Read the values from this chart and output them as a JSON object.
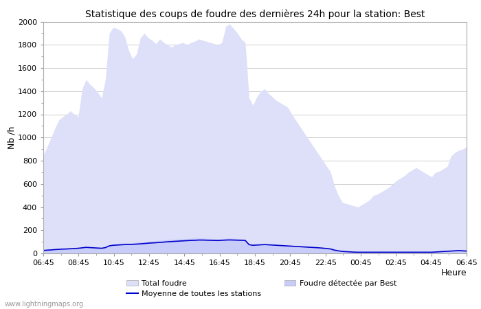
{
  "title": "Statistique des coups de foudre des dernières 24h pour la station: Best",
  "xlabel": "Heure",
  "ylabel": "Nb /h",
  "xtick_labels": [
    "06:45",
    "08:45",
    "10:45",
    "12:45",
    "14:45",
    "16:45",
    "18:45",
    "20:45",
    "22:45",
    "00:45",
    "02:45",
    "04:45",
    "06:45"
  ],
  "ylim": [
    0,
    2000
  ],
  "yticks": [
    0,
    200,
    400,
    600,
    800,
    1000,
    1200,
    1400,
    1600,
    1800,
    2000
  ],
  "background_color": "#ffffff",
  "plot_bg_color": "#ffffff",
  "grid_color": "#cccccc",
  "color_total": "#dde0f8",
  "color_best": "#c8ccf8",
  "color_line": "#0000cc",
  "watermark": "www.lightningmaps.org",
  "legend_total": "Total foudre",
  "legend_best": "Foudre détectée par Best",
  "legend_line": "Moyenne de toutes les stations",
  "total_foudre": [
    850,
    920,
    1000,
    1080,
    1150,
    1180,
    1200,
    1230,
    1200,
    1180,
    1420,
    1500,
    1460,
    1430,
    1390,
    1340,
    1500,
    1900,
    1950,
    1940,
    1920,
    1870,
    1750,
    1680,
    1720,
    1860,
    1900,
    1860,
    1840,
    1810,
    1850,
    1820,
    1800,
    1780,
    1800,
    1810,
    1820,
    1800,
    1820,
    1830,
    1850,
    1840,
    1830,
    1820,
    1810,
    1800,
    1820,
    1960,
    1980,
    1940,
    1900,
    1850,
    1820,
    1340,
    1280,
    1350,
    1400,
    1420,
    1380,
    1350,
    1320,
    1300,
    1280,
    1260,
    1200,
    1150,
    1100,
    1050,
    1000,
    950,
    900,
    850,
    800,
    750,
    700,
    580,
    500,
    440,
    430,
    420,
    410,
    400,
    420,
    440,
    460,
    500,
    510,
    530,
    550,
    570,
    600,
    630,
    650,
    670,
    700,
    720,
    740,
    720,
    700,
    680,
    660,
    700,
    710,
    730,
    750,
    840,
    870,
    890,
    900,
    920
  ],
  "foudre_best": [
    30,
    32,
    35,
    38,
    40,
    42,
    44,
    46,
    48,
    50,
    55,
    60,
    58,
    56,
    54,
    52,
    58,
    75,
    80,
    85,
    88,
    90,
    90,
    92,
    95,
    98,
    100,
    105,
    108,
    110,
    112,
    115,
    118,
    120,
    122,
    125,
    127,
    128,
    130,
    132,
    133,
    132,
    130,
    128,
    126,
    125,
    127,
    130,
    132,
    130,
    128,
    125,
    122,
    80,
    75,
    78,
    80,
    82,
    80,
    78,
    75,
    72,
    70,
    68,
    65,
    62,
    60,
    58,
    55,
    52,
    50,
    48,
    45,
    42,
    40,
    30,
    25,
    20,
    18,
    16,
    14,
    12,
    12,
    12,
    12,
    12,
    12,
    12,
    12,
    12,
    12,
    12,
    12,
    12,
    12,
    12,
    12,
    12,
    12,
    12,
    12,
    15,
    18,
    20,
    22,
    25,
    28,
    30,
    28,
    25
  ],
  "line_moyenne": [
    25,
    28,
    30,
    33,
    35,
    37,
    38,
    40,
    42,
    44,
    48,
    52,
    50,
    48,
    46,
    44,
    50,
    65,
    70,
    72,
    74,
    76,
    76,
    78,
    80,
    82,
    85,
    88,
    90,
    92,
    95,
    97,
    100,
    102,
    104,
    106,
    108,
    110,
    112,
    113,
    115,
    115,
    114,
    113,
    112,
    111,
    113,
    115,
    116,
    115,
    114,
    113,
    112,
    75,
    70,
    72,
    74,
    76,
    74,
    72,
    70,
    68,
    66,
    64,
    62,
    60,
    58,
    56,
    54,
    52,
    50,
    48,
    45,
    42,
    38,
    28,
    22,
    17,
    15,
    13,
    11,
    10,
    10,
    10,
    10,
    10,
    10,
    10,
    10,
    10,
    10,
    10,
    10,
    10,
    10,
    10,
    10,
    10,
    10,
    10,
    10,
    12,
    14,
    16,
    18,
    20,
    22,
    24,
    22,
    20
  ]
}
